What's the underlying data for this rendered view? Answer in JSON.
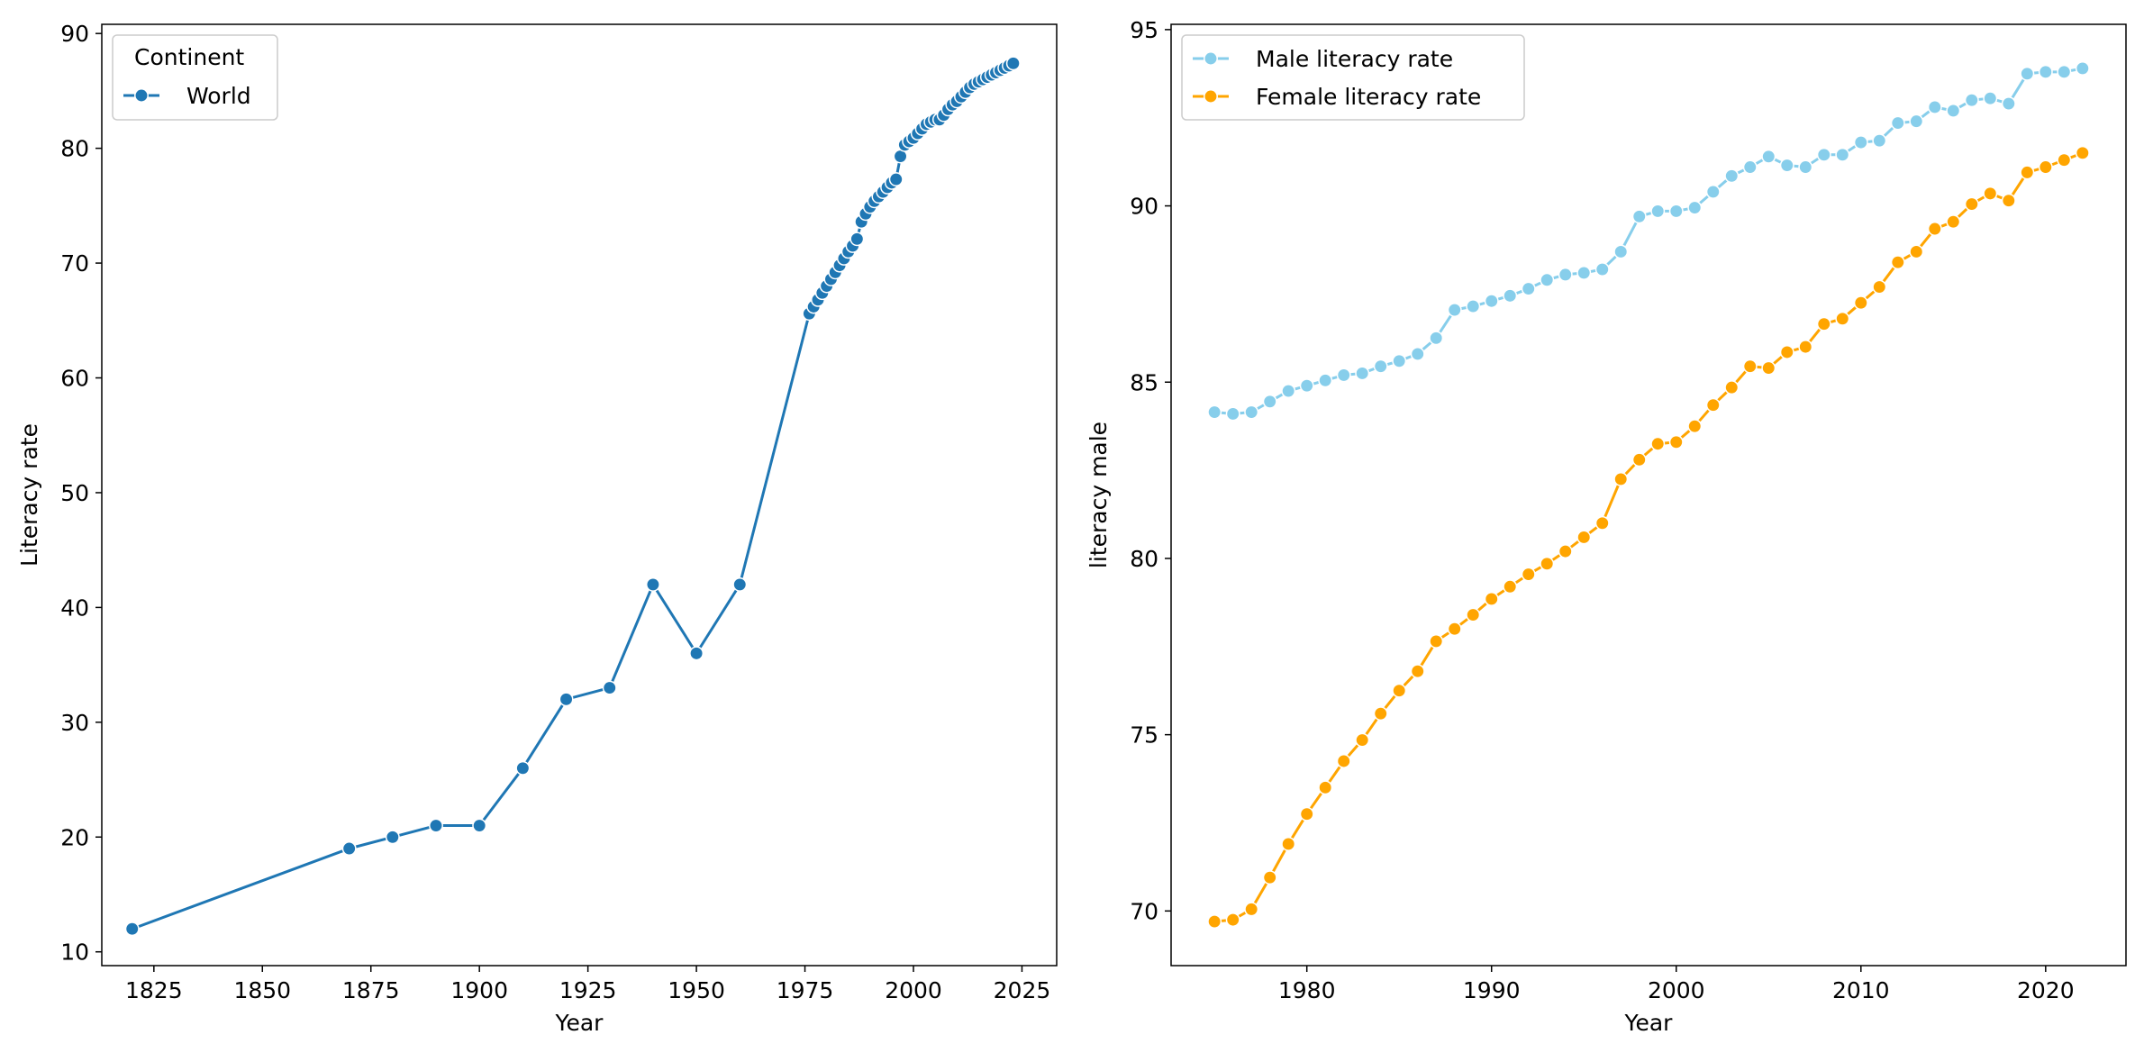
{
  "chart_data": [
    {
      "type": "line",
      "title": "",
      "xlabel": "Year",
      "ylabel": "Literacy rate",
      "xlim": [
        1813,
        2033
      ],
      "ylim": [
        8.8,
        90.8
      ],
      "xticks": [
        1825,
        1850,
        1875,
        1900,
        1925,
        1950,
        1975,
        2000,
        2025
      ],
      "yticks": [
        10,
        20,
        30,
        40,
        50,
        60,
        70,
        80,
        90
      ],
      "grid": false,
      "legend": {
        "title": "Continent",
        "placement": "top-left"
      },
      "series": [
        {
          "name": "World",
          "color": "#1f77b4",
          "x": [
            1820,
            1870,
            1880,
            1890,
            1900,
            1910,
            1920,
            1930,
            1940,
            1950,
            1960,
            1976,
            1977,
            1978,
            1979,
            1980,
            1981,
            1982,
            1983,
            1984,
            1985,
            1986,
            1987,
            1988,
            1989,
            1990,
            1991,
            1992,
            1993,
            1994,
            1995,
            1996,
            1997,
            1998,
            1999,
            2000,
            2001,
            2002,
            2003,
            2004,
            2005,
            2006,
            2007,
            2008,
            2009,
            2010,
            2011,
            2012,
            2013,
            2014,
            2015,
            2016,
            2017,
            2018,
            2019,
            2020,
            2021,
            2022,
            2023
          ],
          "y": [
            12,
            19,
            20,
            21,
            21,
            26,
            32,
            33,
            42,
            36,
            42,
            65.6,
            66.2,
            66.8,
            67.4,
            68.0,
            68.6,
            69.2,
            69.8,
            70.4,
            71.0,
            71.5,
            72.1,
            73.6,
            74.3,
            74.9,
            75.4,
            75.8,
            76.2,
            76.6,
            77.0,
            77.3,
            79.3,
            80.3,
            80.6,
            80.9,
            81.3,
            81.7,
            82.1,
            82.3,
            82.5,
            82.5,
            82.9,
            83.4,
            83.8,
            84.1,
            84.5,
            84.9,
            85.3,
            85.6,
            85.8,
            86.0,
            86.2,
            86.4,
            86.6,
            86.8,
            87.0,
            87.2,
            87.4
          ]
        }
      ]
    },
    {
      "type": "line",
      "title": "",
      "xlabel": "Year",
      "ylabel": "literacy male",
      "xlim": [
        1972.65,
        2024.35
      ],
      "ylim": [
        68.45,
        95.15
      ],
      "xticks": [
        1980,
        1990,
        2000,
        2010,
        2020
      ],
      "yticks": [
        70,
        75,
        80,
        85,
        90,
        95
      ],
      "grid": false,
      "legend": {
        "title": "",
        "placement": "top-left"
      },
      "series": [
        {
          "name": "Male literacy rate",
          "color": "#87ceeb",
          "x": [
            1975,
            1976,
            1977,
            1978,
            1979,
            1980,
            1981,
            1982,
            1983,
            1984,
            1985,
            1986,
            1987,
            1988,
            1989,
            1990,
            1991,
            1992,
            1993,
            1994,
            1995,
            1996,
            1997,
            1998,
            1999,
            2000,
            2001,
            2002,
            2003,
            2004,
            2005,
            2006,
            2007,
            2008,
            2009,
            2010,
            2011,
            2012,
            2013,
            2014,
            2015,
            2016,
            2017,
            2018,
            2019,
            2020,
            2021,
            2022
          ],
          "y": [
            84.15,
            84.1,
            84.15,
            84.45,
            84.75,
            84.9,
            85.05,
            85.2,
            85.25,
            85.45,
            85.6,
            85.8,
            86.25,
            87.05,
            87.15,
            87.3,
            87.45,
            87.65,
            87.9,
            88.05,
            88.1,
            88.2,
            88.7,
            89.7,
            89.85,
            89.85,
            89.95,
            90.4,
            90.85,
            91.1,
            91.4,
            91.15,
            91.1,
            91.45,
            91.45,
            91.8,
            91.85,
            92.35,
            92.4,
            92.8,
            92.7,
            93.0,
            93.05,
            92.9,
            93.75,
            93.8,
            93.8,
            93.9
          ]
        },
        {
          "name": "Female literacy rate",
          "color": "#ffa500",
          "x": [
            1975,
            1976,
            1977,
            1978,
            1979,
            1980,
            1981,
            1982,
            1983,
            1984,
            1985,
            1986,
            1987,
            1988,
            1989,
            1990,
            1991,
            1992,
            1993,
            1994,
            1995,
            1996,
            1997,
            1998,
            1999,
            2000,
            2001,
            2002,
            2003,
            2004,
            2005,
            2006,
            2007,
            2008,
            2009,
            2010,
            2011,
            2012,
            2013,
            2014,
            2015,
            2016,
            2017,
            2018,
            2019,
            2020,
            2021,
            2022
          ],
          "y": [
            69.7,
            69.75,
            70.05,
            70.95,
            71.9,
            72.75,
            73.5,
            74.25,
            74.85,
            75.6,
            76.25,
            76.8,
            77.65,
            78.0,
            78.4,
            78.85,
            79.2,
            79.55,
            79.85,
            80.2,
            80.6,
            81.0,
            82.25,
            82.8,
            83.25,
            83.3,
            83.75,
            84.35,
            84.85,
            85.45,
            85.4,
            85.85,
            86.0,
            86.65,
            86.8,
            87.25,
            87.7,
            88.4,
            88.7,
            89.35,
            89.55,
            90.05,
            90.35,
            90.15,
            90.95,
            91.1,
            91.3,
            91.5
          ]
        }
      ]
    }
  ]
}
